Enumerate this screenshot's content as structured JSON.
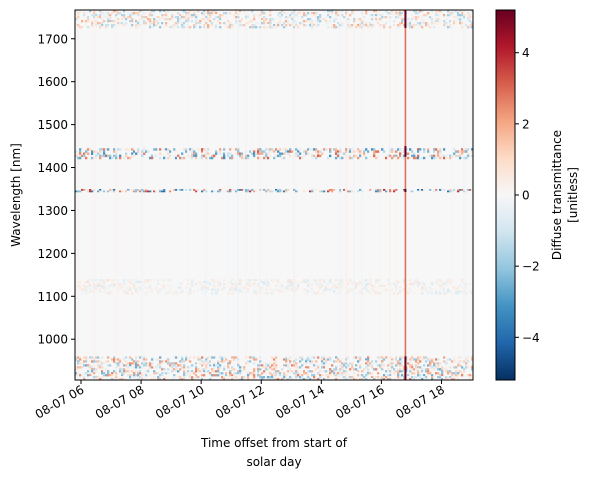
{
  "chart_data": {
    "type": "heatmap",
    "title": "",
    "xlabel_lines": [
      "Time offset from start of",
      "solar day"
    ],
    "ylabel": "Wavelength [nm]",
    "colorbar_label_lines": [
      "Diffuse transmittance",
      "[unitless]"
    ],
    "x_range_hours": [
      5.8,
      19.05
    ],
    "x_ticks": [
      {
        "hour": 6,
        "label": "08-07 06"
      },
      {
        "hour": 8,
        "label": "08-07 08"
      },
      {
        "hour": 10,
        "label": "08-07 10"
      },
      {
        "hour": 12,
        "label": "08-07 12"
      },
      {
        "hour": 14,
        "label": "08-07 14"
      },
      {
        "hour": 16,
        "label": "08-07 16"
      },
      {
        "hour": 18,
        "label": "08-07 18"
      }
    ],
    "ylim": [
      905,
      1767
    ],
    "y_ticks": [
      1000,
      1100,
      1200,
      1300,
      1400,
      1500,
      1600,
      1700
    ],
    "colorbar_range": [
      -5.2,
      5.2
    ],
    "colorbar_ticks": [
      -4,
      -2,
      0,
      2,
      4
    ],
    "colormap": "RdBu_r",
    "colormap_stops": [
      "#053061",
      "#2166ac",
      "#4393c3",
      "#92c5de",
      "#d1e5f0",
      "#f7f7f7",
      "#fddbc7",
      "#f4a582",
      "#d6604d",
      "#b2182b",
      "#67001f"
    ],
    "field_value": 0,
    "noisy_wavelength_bands": [
      {
        "from": 905,
        "to": 960,
        "amplitude": 1.2
      },
      {
        "from": 1420,
        "to": 1445,
        "amplitude": 1.5
      },
      {
        "from": 1343,
        "to": 1350,
        "amplitude": 1.8
      },
      {
        "from": 1725,
        "to": 1767,
        "amplitude": 0.9
      },
      {
        "from": 1105,
        "to": 1140,
        "amplitude": 0.35
      }
    ],
    "notable_time_column_hour": 16.8,
    "notable_column_peak": 5.2
  }
}
